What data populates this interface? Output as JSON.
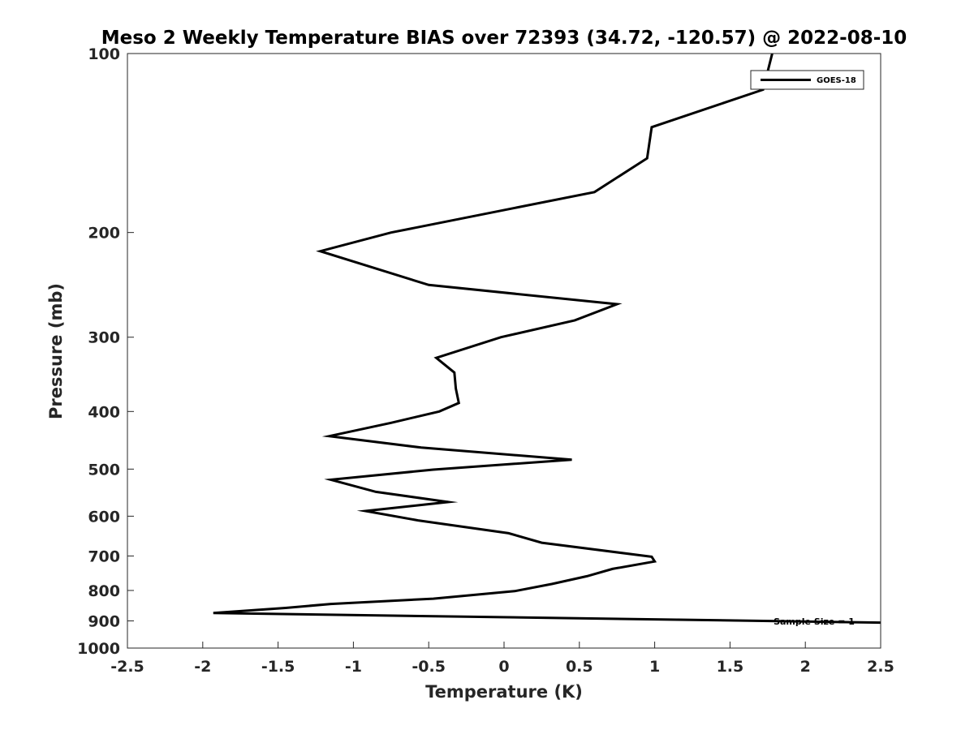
{
  "chart_data": {
    "type": "line",
    "title": "Meso 2 Weekly Temperature BIAS over 72393 (34.72, -120.57) @ 2022-08-10",
    "xlabel": "Temperature (K)",
    "ylabel": "Pressure (mb)",
    "xlim": [
      -2.5,
      2.5
    ],
    "ylim": [
      100,
      1000
    ],
    "yscale": "log",
    "y_reversed": true,
    "grid": false,
    "legend_position": "top-right",
    "x_ticks": [
      -2.5,
      -2,
      -1.5,
      -1,
      -0.5,
      0,
      0.5,
      1,
      1.5,
      2,
      2.5
    ],
    "x_tick_labels": [
      "-2.5",
      "-2",
      "-1.5",
      "-1",
      "-0.5",
      "0",
      "0.5",
      "1",
      "1.5",
      "2",
      "2.5"
    ],
    "y_ticks": [
      100,
      200,
      300,
      400,
      500,
      600,
      700,
      800,
      900,
      1000
    ],
    "y_tick_labels": [
      "100",
      "200",
      "300",
      "400",
      "500",
      "600",
      "700",
      "800",
      "900",
      "1000"
    ],
    "annotation": "Sample Size = 1",
    "series": [
      {
        "name": "GOES-18",
        "color": "#000000",
        "x": [
          1.78,
          1.72,
          0.98,
          0.95,
          0.6,
          -0.75,
          -1.22,
          -0.5,
          0.75,
          0.47,
          -0.02,
          -0.45,
          -0.33,
          -0.32,
          -0.3,
          -0.43,
          -0.75,
          -1.16,
          -0.55,
          0.45,
          -0.47,
          -1.15,
          -0.85,
          -0.37,
          -0.92,
          -0.57,
          0.03,
          0.25,
          0.98,
          1.0,
          0.72,
          0.55,
          0.32,
          0.07,
          -0.47,
          -1.15,
          -1.45,
          -1.93,
          2.5
        ],
        "y": [
          100,
          115,
          133,
          150,
          171,
          200,
          215,
          245,
          264,
          281,
          300,
          325,
          344,
          366,
          387,
          400,
          418,
          440,
          460,
          482,
          501,
          521,
          546,
          568,
          588,
          610,
          641,
          665,
          702,
          715,
          736,
          757,
          780,
          802,
          826,
          843,
          856,
          873,
          906
        ]
      }
    ]
  }
}
